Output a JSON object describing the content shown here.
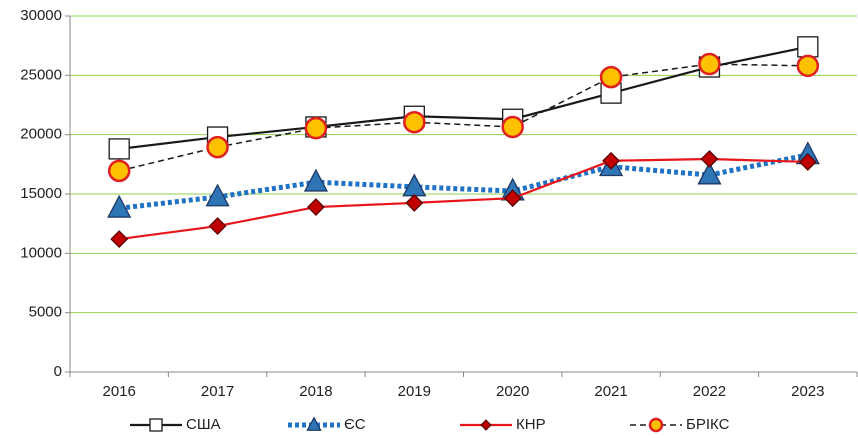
{
  "chart_data": {
    "type": "line",
    "categories": [
      "2016",
      "2017",
      "2018",
      "2019",
      "2020",
      "2021",
      "2022",
      "2023"
    ],
    "series": [
      {
        "name": "США",
        "color": "#1a1a1a",
        "marker": "square",
        "marker_fill": "#ffffff",
        "line_style": "solid",
        "values": [
          18800,
          19800,
          20650,
          21550,
          21300,
          23500,
          25700,
          27400
        ]
      },
      {
        "name": "ЄС",
        "color": "#1f72c4",
        "marker": "triangle",
        "marker_fill": "#2e75b6",
        "line_style": "dotted",
        "values": [
          13800,
          14750,
          16000,
          15600,
          15250,
          17300,
          16600,
          18300
        ]
      },
      {
        "name": "КНР",
        "color": "#e8161b",
        "marker": "diamond",
        "marker_fill": "#c00000",
        "line_style": "solid",
        "values": [
          11200,
          12300,
          13900,
          14250,
          14650,
          17800,
          17950,
          17700
        ]
      },
      {
        "name": "БРІКС",
        "color": "#1a1a1a",
        "marker": "circle",
        "marker_fill": "#ffc000",
        "line_style": "dashed",
        "values": [
          16950,
          18950,
          20550,
          21050,
          20650,
          24850,
          25950,
          25800
        ]
      }
    ],
    "ylim": [
      0,
      30000
    ],
    "yticks": [
      0,
      5000,
      10000,
      15000,
      20000,
      25000,
      30000
    ],
    "grid": true,
    "grid_color": "#92d050",
    "legend": "bottom"
  }
}
